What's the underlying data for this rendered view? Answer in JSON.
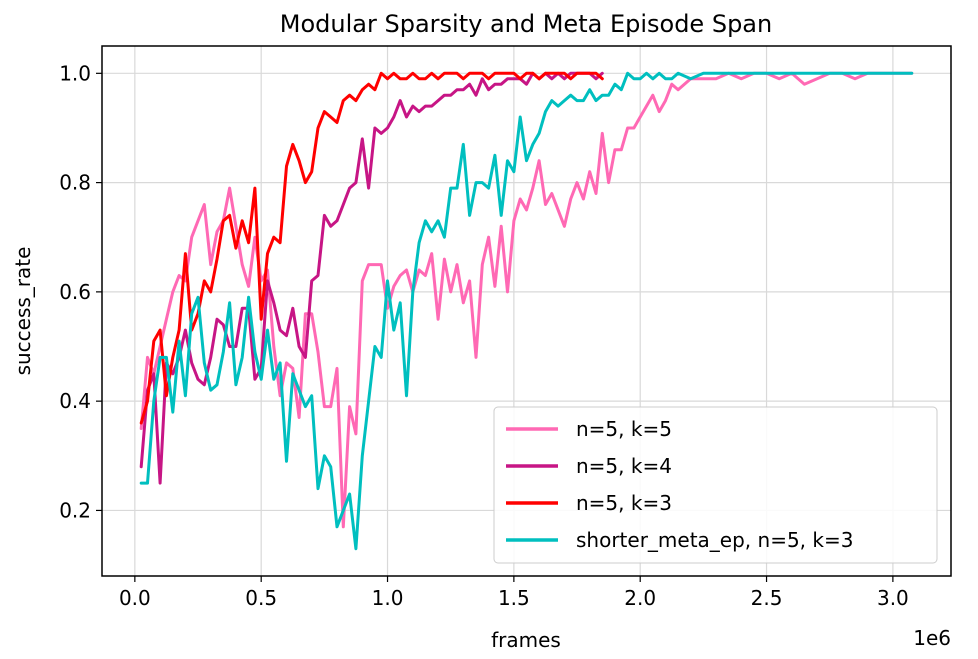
{
  "chart_data": {
    "type": "line",
    "title": "Modular Sparsity and Meta Episode Span",
    "xlabel": "frames",
    "ylabel": "success_rate",
    "x_offset_label": "1e6",
    "xlim": [
      -0.13,
      3.23
    ],
    "ylim": [
      0.08,
      1.05
    ],
    "x_ticks": [
      0.0,
      0.5,
      1.0,
      1.5,
      2.0,
      2.5,
      3.0
    ],
    "x_tick_labels": [
      "0.0",
      "0.5",
      "1.0",
      "1.5",
      "2.0",
      "2.5",
      "3.0"
    ],
    "y_ticks": [
      0.2,
      0.4,
      0.6,
      0.8,
      1.0
    ],
    "y_tick_labels": [
      "0.2",
      "0.4",
      "0.6",
      "0.8",
      "1.0"
    ],
    "grid": true,
    "legend_position": "lower-right",
    "series": [
      {
        "name": "n=5, k=5",
        "color": "#ff69b4",
        "x": [
          0.025,
          0.05,
          0.075,
          0.1,
          0.125,
          0.15,
          0.175,
          0.2,
          0.225,
          0.25,
          0.275,
          0.3,
          0.325,
          0.35,
          0.375,
          0.4,
          0.425,
          0.45,
          0.475,
          0.5,
          0.525,
          0.55,
          0.575,
          0.6,
          0.625,
          0.65,
          0.675,
          0.7,
          0.725,
          0.75,
          0.775,
          0.8,
          0.825,
          0.85,
          0.875,
          0.9,
          0.925,
          0.95,
          0.975,
          1.0,
          1.025,
          1.05,
          1.075,
          1.1,
          1.125,
          1.15,
          1.175,
          1.2,
          1.225,
          1.25,
          1.275,
          1.3,
          1.325,
          1.35,
          1.375,
          1.4,
          1.425,
          1.45,
          1.475,
          1.5,
          1.525,
          1.55,
          1.575,
          1.6,
          1.625,
          1.65,
          1.675,
          1.7,
          1.725,
          1.75,
          1.775,
          1.8,
          1.825,
          1.85,
          1.875,
          1.9,
          1.925,
          1.95,
          1.975,
          2.0,
          2.025,
          2.05,
          2.075,
          2.1,
          2.125,
          2.15,
          2.2,
          2.25,
          2.3,
          2.35,
          2.4,
          2.45,
          2.5,
          2.55,
          2.6,
          2.65,
          2.7,
          2.75,
          2.8,
          2.85,
          2.9,
          2.95,
          3.0,
          3.05,
          3.075
        ],
        "y": [
          0.35,
          0.48,
          0.45,
          0.5,
          0.55,
          0.6,
          0.63,
          0.62,
          0.7,
          0.73,
          0.76,
          0.65,
          0.71,
          0.73,
          0.79,
          0.72,
          0.65,
          0.61,
          0.7,
          0.62,
          0.64,
          0.5,
          0.41,
          0.47,
          0.46,
          0.37,
          0.56,
          0.56,
          0.49,
          0.39,
          0.39,
          0.46,
          0.17,
          0.39,
          0.34,
          0.62,
          0.65,
          0.65,
          0.65,
          0.57,
          0.61,
          0.63,
          0.64,
          0.6,
          0.64,
          0.63,
          0.67,
          0.55,
          0.66,
          0.6,
          0.65,
          0.58,
          0.62,
          0.48,
          0.65,
          0.7,
          0.61,
          0.72,
          0.6,
          0.73,
          0.77,
          0.75,
          0.79,
          0.84,
          0.76,
          0.78,
          0.75,
          0.72,
          0.77,
          0.8,
          0.77,
          0.82,
          0.78,
          0.89,
          0.8,
          0.86,
          0.86,
          0.9,
          0.9,
          0.92,
          0.94,
          0.96,
          0.93,
          0.95,
          0.98,
          0.97,
          0.99,
          0.99,
          0.99,
          1.0,
          0.99,
          1.0,
          1.0,
          0.99,
          1.0,
          0.98,
          0.99,
          1.0,
          1.0,
          0.99,
          1.0,
          1.0,
          1.0,
          1.0,
          1.0
        ]
      },
      {
        "name": "n=5, k=4",
        "color": "#c71585",
        "x": [
          0.025,
          0.05,
          0.075,
          0.1,
          0.125,
          0.15,
          0.175,
          0.2,
          0.225,
          0.25,
          0.275,
          0.3,
          0.325,
          0.35,
          0.375,
          0.4,
          0.425,
          0.45,
          0.475,
          0.5,
          0.525,
          0.55,
          0.575,
          0.6,
          0.625,
          0.65,
          0.675,
          0.7,
          0.725,
          0.75,
          0.775,
          0.8,
          0.825,
          0.85,
          0.875,
          0.9,
          0.925,
          0.95,
          0.975,
          1.0,
          1.025,
          1.05,
          1.075,
          1.1,
          1.125,
          1.15,
          1.175,
          1.2,
          1.225,
          1.25,
          1.275,
          1.3,
          1.325,
          1.35,
          1.375,
          1.4,
          1.425,
          1.45,
          1.475,
          1.5,
          1.525,
          1.55,
          1.575,
          1.6,
          1.625,
          1.65,
          1.675,
          1.7,
          1.725,
          1.75,
          1.775,
          1.8,
          1.825,
          1.85
        ],
        "y": [
          0.28,
          0.42,
          0.45,
          0.25,
          0.47,
          0.45,
          0.48,
          0.53,
          0.47,
          0.44,
          0.43,
          0.48,
          0.55,
          0.54,
          0.5,
          0.5,
          0.57,
          0.57,
          0.44,
          0.46,
          0.62,
          0.58,
          0.53,
          0.52,
          0.57,
          0.5,
          0.48,
          0.62,
          0.63,
          0.74,
          0.72,
          0.73,
          0.76,
          0.79,
          0.8,
          0.88,
          0.79,
          0.9,
          0.89,
          0.9,
          0.92,
          0.95,
          0.92,
          0.94,
          0.93,
          0.94,
          0.94,
          0.95,
          0.96,
          0.96,
          0.97,
          0.97,
          0.98,
          0.96,
          0.99,
          0.97,
          0.98,
          0.98,
          0.99,
          0.99,
          0.99,
          0.98,
          1.0,
          0.99,
          1.0,
          0.99,
          1.0,
          0.99,
          1.0,
          1.0,
          1.0,
          1.0,
          0.99,
          1.0
        ]
      },
      {
        "name": "n=5, k=3",
        "color": "#ff0000",
        "x": [
          0.025,
          0.05,
          0.075,
          0.1,
          0.125,
          0.15,
          0.175,
          0.2,
          0.225,
          0.25,
          0.275,
          0.3,
          0.325,
          0.35,
          0.375,
          0.4,
          0.425,
          0.45,
          0.475,
          0.5,
          0.525,
          0.55,
          0.575,
          0.6,
          0.625,
          0.65,
          0.675,
          0.7,
          0.725,
          0.75,
          0.775,
          0.8,
          0.825,
          0.85,
          0.875,
          0.9,
          0.925,
          0.95,
          0.975,
          1.0,
          1.025,
          1.05,
          1.075,
          1.1,
          1.125,
          1.15,
          1.175,
          1.2,
          1.225,
          1.25,
          1.275,
          1.3,
          1.325,
          1.35,
          1.375,
          1.4,
          1.425,
          1.45,
          1.475,
          1.5,
          1.525,
          1.55,
          1.575,
          1.6,
          1.625,
          1.65,
          1.675,
          1.7,
          1.725,
          1.75,
          1.775,
          1.8,
          1.825,
          1.85
        ],
        "y": [
          0.36,
          0.4,
          0.51,
          0.53,
          0.41,
          0.48,
          0.53,
          0.67,
          0.53,
          0.56,
          0.62,
          0.6,
          0.66,
          0.73,
          0.74,
          0.68,
          0.73,
          0.69,
          0.79,
          0.55,
          0.67,
          0.7,
          0.69,
          0.83,
          0.87,
          0.84,
          0.8,
          0.82,
          0.9,
          0.93,
          0.92,
          0.91,
          0.95,
          0.96,
          0.95,
          0.97,
          0.98,
          0.97,
          1.0,
          0.99,
          1.0,
          0.99,
          0.99,
          1.0,
          0.99,
          0.99,
          1.0,
          0.99,
          1.0,
          1.0,
          1.0,
          0.99,
          1.0,
          1.0,
          1.0,
          0.99,
          1.0,
          1.0,
          1.0,
          1.0,
          0.99,
          1.0,
          1.0,
          0.99,
          1.0,
          1.0,
          1.0,
          1.0,
          0.99,
          1.0,
          1.0,
          1.0,
          1.0,
          0.99
        ]
      },
      {
        "name": "shorter_meta_ep, n=5, k=3",
        "color": "#00bfbf",
        "x": [
          0.025,
          0.05,
          0.075,
          0.1,
          0.125,
          0.15,
          0.175,
          0.2,
          0.225,
          0.25,
          0.275,
          0.3,
          0.325,
          0.35,
          0.375,
          0.4,
          0.425,
          0.45,
          0.475,
          0.5,
          0.525,
          0.55,
          0.575,
          0.6,
          0.625,
          0.65,
          0.675,
          0.7,
          0.725,
          0.75,
          0.775,
          0.8,
          0.825,
          0.85,
          0.875,
          0.9,
          0.925,
          0.95,
          0.975,
          1.0,
          1.025,
          1.05,
          1.075,
          1.1,
          1.125,
          1.15,
          1.175,
          1.2,
          1.225,
          1.25,
          1.275,
          1.3,
          1.325,
          1.35,
          1.375,
          1.4,
          1.425,
          1.45,
          1.475,
          1.5,
          1.525,
          1.55,
          1.575,
          1.6,
          1.625,
          1.65,
          1.675,
          1.7,
          1.725,
          1.75,
          1.775,
          1.8,
          1.825,
          1.85,
          1.875,
          1.9,
          1.925,
          1.95,
          1.975,
          2.0,
          2.025,
          2.05,
          2.075,
          2.1,
          2.125,
          2.15,
          2.2,
          2.25,
          2.3,
          2.35,
          2.4,
          2.45,
          2.5,
          2.55,
          2.6,
          2.65,
          2.7,
          2.75,
          2.8,
          2.85,
          2.9,
          2.95,
          3.0,
          3.05,
          3.075
        ],
        "y": [
          0.25,
          0.25,
          0.4,
          0.48,
          0.48,
          0.38,
          0.51,
          0.41,
          0.56,
          0.59,
          0.47,
          0.42,
          0.43,
          0.49,
          0.58,
          0.43,
          0.48,
          0.59,
          0.49,
          0.44,
          0.53,
          0.44,
          0.47,
          0.29,
          0.45,
          0.42,
          0.39,
          0.41,
          0.24,
          0.3,
          0.28,
          0.17,
          0.2,
          0.23,
          0.13,
          0.3,
          0.4,
          0.5,
          0.48,
          0.62,
          0.53,
          0.58,
          0.41,
          0.6,
          0.69,
          0.73,
          0.71,
          0.73,
          0.7,
          0.79,
          0.79,
          0.87,
          0.74,
          0.8,
          0.8,
          0.79,
          0.85,
          0.74,
          0.84,
          0.82,
          0.92,
          0.84,
          0.87,
          0.89,
          0.93,
          0.95,
          0.94,
          0.95,
          0.96,
          0.95,
          0.95,
          0.97,
          0.95,
          0.96,
          0.96,
          0.98,
          0.97,
          1.0,
          0.99,
          0.99,
          1.0,
          0.99,
          1.0,
          0.99,
          0.99,
          1.0,
          0.99,
          1.0,
          1.0,
          1.0,
          1.0,
          1.0,
          1.0,
          1.0,
          1.0,
          1.0,
          1.0,
          1.0,
          1.0,
          1.0,
          1.0,
          1.0,
          1.0,
          1.0,
          1.0
        ]
      }
    ]
  }
}
